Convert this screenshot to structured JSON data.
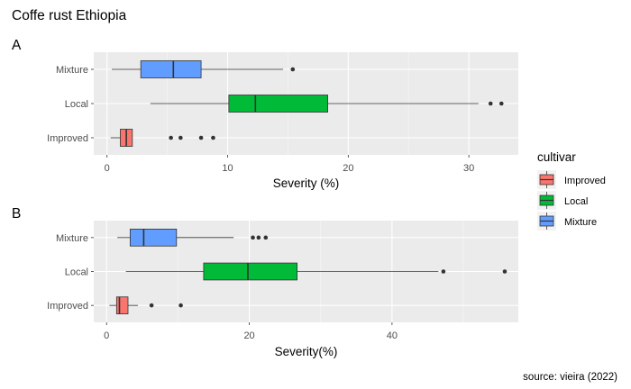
{
  "title": "Coffe rust Ethiopia",
  "caption": "source: vieira (2022)",
  "legend": {
    "title": "cultivar",
    "items": [
      {
        "label": "Improved",
        "color": "#F8766D"
      },
      {
        "label": "Local",
        "color": "#00BA38"
      },
      {
        "label": "Mixture",
        "color": "#619CFF"
      }
    ]
  },
  "chart_data": [
    {
      "type": "boxplot",
      "panel_label": "A",
      "xlabel": "Severity (%)",
      "xlim": [
        -1.1,
        34.1
      ],
      "xticks": [
        0,
        10,
        20,
        30
      ],
      "categories": [
        "Mixture",
        "Local",
        "Improved"
      ],
      "boxes": [
        {
          "category": "Mixture",
          "min": 0.4,
          "q1": 2.8,
          "median": 5.5,
          "q3": 7.8,
          "max": 14.6,
          "outliers": [
            15.4
          ],
          "color": "#619CFF"
        },
        {
          "category": "Local",
          "min": 3.6,
          "q1": 10.1,
          "median": 12.3,
          "q3": 18.3,
          "max": 30.8,
          "outliers": [
            31.8,
            32.7
          ],
          "color": "#00BA38"
        },
        {
          "category": "Improved",
          "min": 0.3,
          "q1": 1.1,
          "median": 1.6,
          "q3": 2.1,
          "max": 2.1,
          "outliers": [
            5.3,
            6.1,
            7.8,
            8.8
          ],
          "color": "#F8766D"
        }
      ],
      "grid": true
    },
    {
      "type": "boxplot",
      "panel_label": "B",
      "xlabel": "Severity(%)",
      "xlim": [
        -1.8,
        57.7
      ],
      "xticks": [
        0,
        20,
        40
      ],
      "categories": [
        "Mixture",
        "Local",
        "Improved"
      ],
      "boxes": [
        {
          "category": "Mixture",
          "min": 1.5,
          "q1": 3.3,
          "median": 5.2,
          "q3": 9.8,
          "max": 17.8,
          "outliers": [
            20.5,
            21.3,
            22.3
          ],
          "color": "#619CFF"
        },
        {
          "category": "Local",
          "min": 2.7,
          "q1": 13.6,
          "median": 19.8,
          "q3": 26.7,
          "max": 46.5,
          "outliers": [
            47.2,
            55.8
          ],
          "color": "#00BA38"
        },
        {
          "category": "Improved",
          "min": 0.4,
          "q1": 1.4,
          "median": 1.8,
          "q3": 3.0,
          "max": 4.4,
          "outliers": [
            6.3,
            10.4
          ],
          "color": "#F8766D"
        }
      ],
      "grid": true
    }
  ]
}
